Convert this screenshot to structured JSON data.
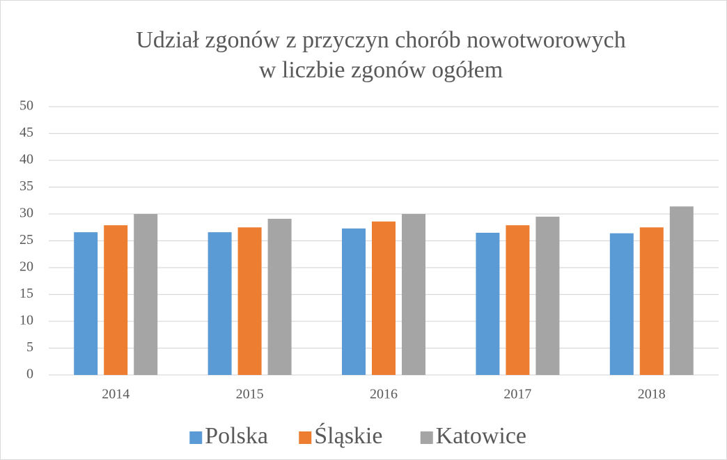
{
  "chart_data": {
    "type": "bar",
    "title": [
      "Udział zgonów z przyczyn chorób nowotworowych",
      "w liczbie zgonów ogółem"
    ],
    "categories": [
      "2014",
      "2015",
      "2016",
      "2017",
      "2018"
    ],
    "series": [
      {
        "name": "Polska",
        "color": "#5b9bd5",
        "values": [
          26.6,
          26.6,
          27.3,
          26.5,
          26.4
        ]
      },
      {
        "name": "Śląskie",
        "color": "#ed7d31",
        "values": [
          27.9,
          27.5,
          28.6,
          27.9,
          27.5
        ]
      },
      {
        "name": "Katowice",
        "color": "#a5a5a5",
        "values": [
          30.0,
          29.1,
          30.0,
          29.5,
          31.4
        ]
      }
    ],
    "ylim": [
      0,
      50
    ],
    "yticks": [
      0,
      5,
      10,
      15,
      20,
      25,
      30,
      35,
      40,
      45,
      50
    ],
    "grid": true,
    "legend": "bottom"
  }
}
